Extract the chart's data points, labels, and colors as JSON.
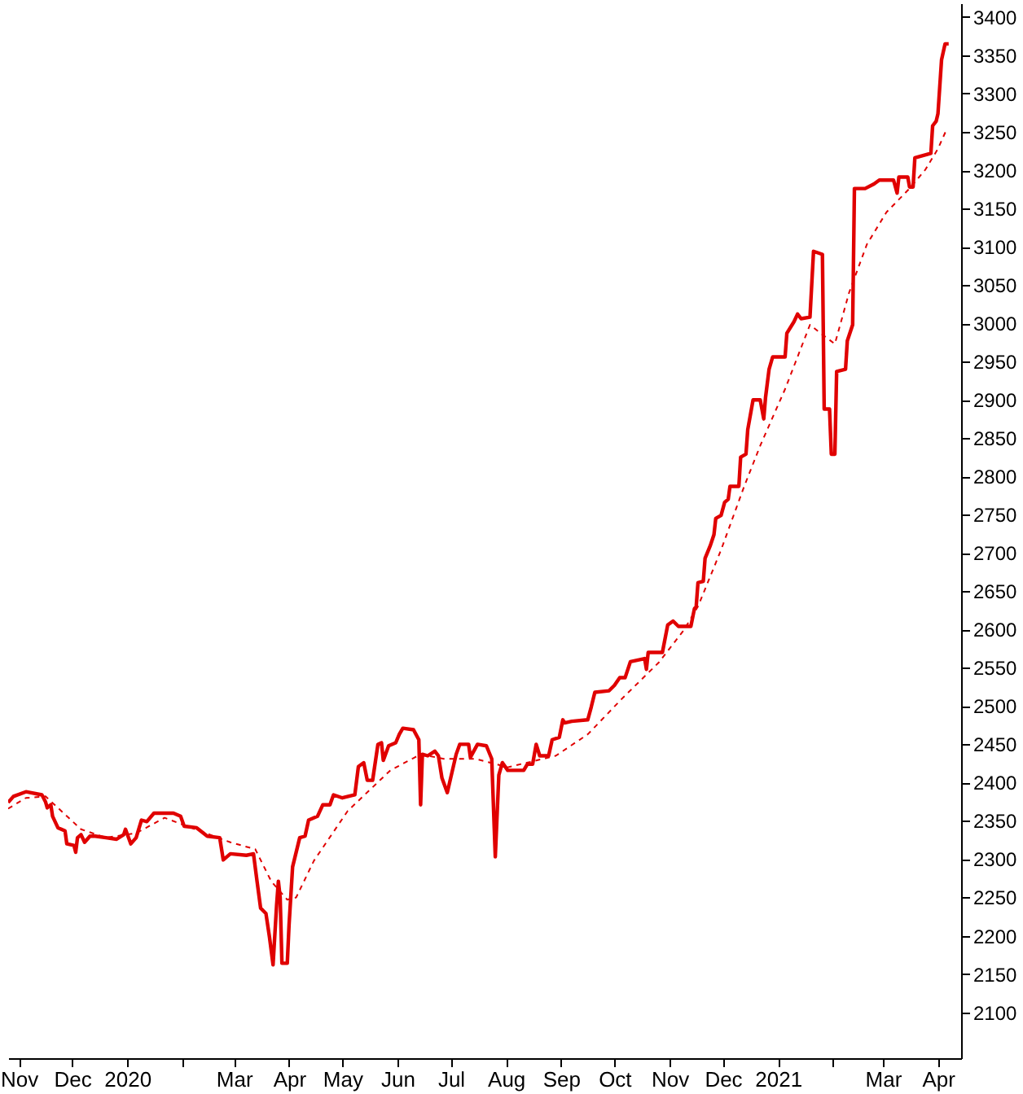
{
  "chart_data": {
    "type": "line",
    "x": [
      "2019-10-26",
      "2019-10-29",
      "2019-11-05",
      "2019-11-14",
      "2019-11-16",
      "2019-11-17",
      "2019-11-19",
      "2019-11-20",
      "2019-11-23",
      "2019-11-27",
      "2019-11-28",
      "2019-12-02",
      "2019-12-03",
      "2019-12-04",
      "2019-12-06",
      "2019-12-08",
      "2019-12-11",
      "2019-12-14",
      "2019-12-20",
      "2019-12-26",
      "2019-12-30",
      "2019-12-31",
      "2020-01-03",
      "2020-01-06",
      "2020-01-09",
      "2020-01-12",
      "2020-01-16",
      "2020-01-19",
      "2020-01-27",
      "2020-01-31",
      "2020-02-02",
      "2020-02-09",
      "2020-02-15",
      "2020-02-22",
      "2020-02-24",
      "2020-02-28",
      "2020-03-08",
      "2020-03-12",
      "2020-03-14",
      "2020-03-16",
      "2020-03-19",
      "2020-03-21",
      "2020-03-23",
      "2020-03-25",
      "2020-03-26",
      "2020-03-27",
      "2020-03-28",
      "2020-03-31",
      "2020-04-01",
      "2020-04-03",
      "2020-04-07",
      "2020-04-10",
      "2020-04-12",
      "2020-04-17",
      "2020-04-20",
      "2020-04-24",
      "2020-04-26",
      "2020-05-01",
      "2020-05-08",
      "2020-05-10",
      "2020-05-13",
      "2020-05-15",
      "2020-05-18",
      "2020-05-21",
      "2020-05-23",
      "2020-05-24",
      "2020-05-27",
      "2020-05-31",
      "2020-06-02",
      "2020-06-04",
      "2020-06-10",
      "2020-06-13",
      "2020-06-14",
      "2020-06-15",
      "2020-06-18",
      "2020-06-22",
      "2020-06-24",
      "2020-06-26",
      "2020-06-29",
      "2020-07-04",
      "2020-07-06",
      "2020-07-11",
      "2020-07-12",
      "2020-07-16",
      "2020-07-21",
      "2020-07-24",
      "2020-07-26",
      "2020-07-28",
      "2020-07-30",
      "2020-08-02",
      "2020-08-11",
      "2020-08-13",
      "2020-08-16",
      "2020-08-18",
      "2020-08-20",
      "2020-08-25",
      "2020-08-27",
      "2020-08-31",
      "2020-09-02",
      "2020-09-03",
      "2020-09-07",
      "2020-09-16",
      "2020-09-18",
      "2020-09-20",
      "2020-09-28",
      "2020-10-01",
      "2020-10-04",
      "2020-10-07",
      "2020-10-10",
      "2020-10-18",
      "2020-10-19",
      "2020-10-20",
      "2020-10-28",
      "2020-10-31",
      "2020-11-03",
      "2020-11-06",
      "2020-11-13",
      "2020-11-15",
      "2020-11-16",
      "2020-11-17",
      "2020-11-20",
      "2020-11-21",
      "2020-11-24",
      "2020-11-26",
      "2020-11-27",
      "2020-11-30",
      "2020-12-02",
      "2020-12-04",
      "2020-12-05",
      "2020-12-10",
      "2020-12-11",
      "2020-12-14",
      "2020-12-15",
      "2020-12-18",
      "2020-12-22",
      "2020-12-24",
      "2020-12-25",
      "2020-12-27",
      "2020-12-29",
      "2021-01-05",
      "2021-01-06",
      "2021-01-10",
      "2021-01-12",
      "2021-01-14",
      "2021-01-19",
      "2021-01-21",
      "2021-01-26",
      "2021-01-27",
      "2021-01-30",
      "2021-01-31",
      "2021-02-02",
      "2021-02-03",
      "2021-02-08",
      "2021-02-09",
      "2021-02-12",
      "2021-02-13",
      "2021-02-19",
      "2021-02-24",
      "2021-02-27",
      "2021-03-07",
      "2021-03-09",
      "2021-03-10",
      "2021-03-15",
      "2021-03-16",
      "2021-03-18",
      "2021-03-19",
      "2021-03-28",
      "2021-03-29",
      "2021-03-31",
      "2021-04-01",
      "2021-04-03",
      "2021-04-05",
      "2021-04-07"
    ],
    "series": [
      {
        "color": "#e00000",
        "line_style": "solid",
        "values": [
          2374,
          2382,
          2388,
          2384,
          2375,
          2367,
          2371,
          2356,
          2341,
          2337,
          2320,
          2318,
          2309,
          2328,
          2332,
          2322,
          2330,
          2330,
          2328,
          2326,
          2332,
          2339,
          2320,
          2328,
          2351,
          2349,
          2360,
          2360,
          2360,
          2356,
          2343,
          2341,
          2330,
          2328,
          2299,
          2307,
          2305,
          2307,
          2271,
          2236,
          2229,
          2198,
          2162,
          2240,
          2271,
          2250,
          2164,
          2164,
          2214,
          2290,
          2328,
          2330,
          2351,
          2356,
          2371,
          2371,
          2384,
          2380,
          2384,
          2421,
          2426,
          2403,
          2403,
          2450,
          2452,
          2429,
          2448,
          2452,
          2463,
          2471,
          2469,
          2456,
          2371,
          2437,
          2435,
          2441,
          2435,
          2406,
          2387,
          2437,
          2450,
          2450,
          2433,
          2450,
          2448,
          2431,
          2303,
          2410,
          2426,
          2416,
          2416,
          2424,
          2424,
          2450,
          2435,
          2435,
          2456,
          2459,
          2482,
          2478,
          2480,
          2482,
          2499,
          2518,
          2520,
          2527,
          2537,
          2537,
          2558,
          2562,
          2548,
          2570,
          2570,
          2606,
          2611,
          2604,
          2604,
          2627,
          2630,
          2661,
          2663,
          2693,
          2710,
          2724,
          2745,
          2749,
          2766,
          2770,
          2787,
          2787,
          2825,
          2829,
          2861,
          2900,
          2900,
          2875,
          2903,
          2940,
          2956,
          2956,
          2987,
          3002,
          3012,
          3006,
          3008,
          3094,
          3090,
          2888,
          2888,
          2829,
          2829,
          2937,
          2940,
          2977,
          2998,
          3176,
          3176,
          3182,
          3187,
          3187,
          3170,
          3191,
          3191,
          3178,
          3178,
          3216,
          3222,
          3258,
          3264,
          3274,
          3344,
          3365,
          3365
        ]
      },
      {
        "color": "#e00000",
        "line_style": "dashed",
        "x": [
          "2019-10-26",
          "2019-11-05",
          "2019-11-16",
          "2019-11-23",
          "2019-12-06",
          "2019-12-20",
          "2020-01-06",
          "2020-01-22",
          "2020-02-06",
          "2020-02-28",
          "2020-03-13",
          "2020-03-22",
          "2020-03-31",
          "2020-04-05",
          "2020-04-15",
          "2020-05-04",
          "2020-05-28",
          "2020-06-14",
          "2020-06-27",
          "2020-07-15",
          "2020-08-02",
          "2020-08-29",
          "2020-09-16",
          "2020-10-05",
          "2020-10-26",
          "2020-11-09",
          "2020-11-17",
          "2020-11-30",
          "2020-12-13",
          "2020-12-22",
          "2021-01-05",
          "2021-01-19",
          "2021-01-25",
          "2021-02-02",
          "2021-02-10",
          "2021-02-20",
          "2021-03-03",
          "2021-03-16",
          "2021-03-25",
          "2021-04-01",
          "2021-04-06"
        ],
        "values": [
          2366,
          2380,
          2382,
          2367,
          2339,
          2328,
          2334,
          2354,
          2341,
          2322,
          2313,
          2271,
          2247,
          2250,
          2298,
          2363,
          2416,
          2437,
          2431,
          2431,
          2420,
          2435,
          2463,
          2509,
          2557,
          2599,
          2630,
          2704,
          2787,
          2840,
          2914,
          2998,
          2987,
          2973,
          3040,
          3103,
          3145,
          3176,
          3201,
          3228,
          3254
        ]
      }
    ],
    "xlim": [
      "2019-10-26",
      "2021-04-14"
    ],
    "xticks": [
      {
        "value": "2019-11-01",
        "label": "Nov"
      },
      {
        "value": "2019-12-01",
        "label": "Dec"
      },
      {
        "value": "2020-01-01",
        "label": "2020"
      },
      {
        "value": "2020-02-01",
        "label": null
      },
      {
        "value": "2020-03-01",
        "label": "Mar"
      },
      {
        "value": "2020-04-01",
        "label": "Apr"
      },
      {
        "value": "2020-05-01",
        "label": "May"
      },
      {
        "value": "2020-06-01",
        "label": "Jun"
      },
      {
        "value": "2020-07-01",
        "label": "Jul"
      },
      {
        "value": "2020-08-01",
        "label": "Aug"
      },
      {
        "value": "2020-09-01",
        "label": "Sep"
      },
      {
        "value": "2020-10-01",
        "label": "Oct"
      },
      {
        "value": "2020-11-01",
        "label": "Nov"
      },
      {
        "value": "2020-12-01",
        "label": "Dec"
      },
      {
        "value": "2021-01-01",
        "label": "2021"
      },
      {
        "value": "2021-02-01",
        "label": null
      },
      {
        "value": "2021-03-01",
        "label": "Mar"
      },
      {
        "value": "2021-04-01",
        "label": "Apr"
      }
    ],
    "ylim": [
      2040,
      3418
    ],
    "yticks": [
      2100,
      2150,
      2200,
      2250,
      2300,
      2350,
      2400,
      2450,
      2500,
      2550,
      2600,
      2650,
      2700,
      2750,
      2800,
      2850,
      2900,
      2950,
      3000,
      3050,
      3100,
      3150,
      3200,
      3250,
      3300,
      3350,
      3400
    ],
    "grid": false
  }
}
